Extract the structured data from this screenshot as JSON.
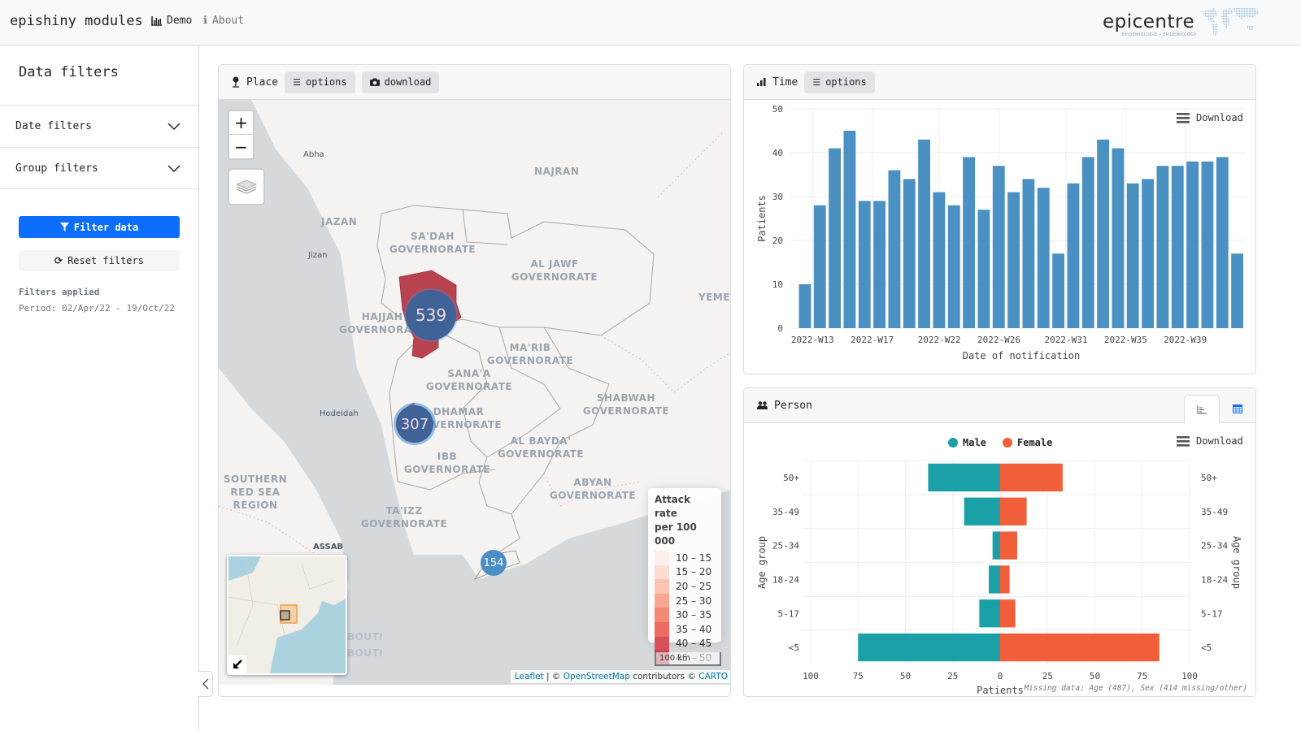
{
  "navbar": {
    "brand": "epishiny modules",
    "demo_label": "Demo",
    "about_label": "About",
    "logo_text": "epicentre",
    "logo_subtitle": "ÉPIDÉMIOLOGIE • EPIDEMIOLOGY"
  },
  "sidebar": {
    "title": "Data filters",
    "accordions": [
      {
        "label": "Date filters"
      },
      {
        "label": "Group filters"
      }
    ],
    "filter_button": "Filter data",
    "reset_button": "Reset filters",
    "filters_applied_label": "Filters applied",
    "period_text": "Period: 02/Apr/22 - 19/Oct/22"
  },
  "place": {
    "title": "Place",
    "options_label": "options",
    "download_label": "download",
    "zoom_in": "+",
    "zoom_out": "−",
    "clusters": [
      {
        "value": "539"
      },
      {
        "value": "307"
      },
      {
        "value": "154"
      }
    ],
    "regions": [
      "NAJRAN",
      "JAZAN",
      "SA'DAH GOVERNORATE",
      "AL JAWF GOVERNORATE",
      "HAJJAH GOVERNORATE",
      "MA'RIB GOVERNORATE",
      "SANA'A GOVERNORATE",
      "DHAMAR GOVERNORATE",
      "SHABWAH GOVERNORATE",
      "AL BAYDA' GOVERNORATE",
      "IBB GOVERNORATE",
      "ABYAN GOVERNORATE",
      "TA'IZZ GOVERNORATE",
      "SOUTHERN RED SEA REGION",
      "YEME"
    ],
    "cities": [
      "Abha",
      "Jizan",
      "Hodeidah",
      "ASSAB",
      "BOUTI",
      "BOUTI"
    ],
    "legend": {
      "title_line1": "Attack rate",
      "title_line2": "per 100 000",
      "bins": [
        {
          "label": "10 – 15",
          "color": "#fdf0ec"
        },
        {
          "label": "15 – 20",
          "color": "#fcddd2"
        },
        {
          "label": "20 – 25",
          "color": "#fbc4b1"
        },
        {
          "label": "25 – 30",
          "color": "#f9a791"
        },
        {
          "label": "30 – 35",
          "color": "#f58a74"
        },
        {
          "label": "35 – 40",
          "color": "#ec6a5f"
        },
        {
          "label": "40 – 45",
          "color": "#d84f58"
        },
        {
          "label": "45 – 50",
          "color": "#b8434f"
        }
      ]
    },
    "scale_label": "100 km",
    "attribution": {
      "leaflet": "Leaflet",
      "sep1": " | © ",
      "osm": "OpenStreetMap",
      "contrib": " contributors © ",
      "carto": "CARTO"
    }
  },
  "time": {
    "title": "Time",
    "options_label": "options",
    "download_label": "Download"
  },
  "person": {
    "title": "Person",
    "download_label": "Download",
    "missing_text": "Missing data: Age (487), Sex (414 missing/other)"
  },
  "chart_data": [
    {
      "type": "bar",
      "title": "",
      "xlabel": "Date of notification",
      "ylabel": "Patients",
      "ylim": [
        0,
        50
      ],
      "yticks": [
        0,
        10,
        20,
        30,
        40,
        50
      ],
      "xtick_labels": [
        "2022-W13",
        "2022-W17",
        "2022-W22",
        "2022-W26",
        "2022-W31",
        "2022-W35",
        "2022-W39"
      ],
      "xtick_indices": [
        0.5,
        4.5,
        9,
        13,
        17.5,
        21.5,
        25.5
      ],
      "color": "#4a90c2",
      "categories": [
        "2022-W13a",
        "2022-W13",
        "2022-W14",
        "2022-W15",
        "2022-W16",
        "2022-W17",
        "2022-W18",
        "2022-W19",
        "2022-W20",
        "2022-W21",
        "2022-W22",
        "2022-W23",
        "2022-W24",
        "2022-W25",
        "2022-W26",
        "2022-W27",
        "2022-W28",
        "2022-W29",
        "2022-W30",
        "2022-W31",
        "2022-W32",
        "2022-W33",
        "2022-W34",
        "2022-W35",
        "2022-W36",
        "2022-W37",
        "2022-W38",
        "2022-W39",
        "2022-W40",
        "2022-W41"
      ],
      "values": [
        10,
        28,
        41,
        45,
        29,
        29,
        36,
        34,
        43,
        31,
        28,
        39,
        27,
        37,
        31,
        34,
        32,
        17,
        33,
        39,
        43,
        41,
        33,
        34,
        37,
        37,
        38,
        38,
        39,
        17
      ],
      "grid": true
    },
    {
      "type": "bar",
      "subtype": "population-pyramid",
      "xlabel": "Patients",
      "ylabel": "Age group",
      "xlim": [
        -100,
        100
      ],
      "xticks": [
        100,
        75,
        50,
        25,
        0,
        25,
        50,
        75,
        100
      ],
      "categories": [
        "50+",
        "35-49",
        "25-34",
        "18-24",
        "5-17",
        "<5"
      ],
      "legend": "top-center",
      "series": [
        {
          "name": "Male",
          "color": "#1ba0a8",
          "values": [
            38,
            19,
            4,
            6,
            11,
            75
          ]
        },
        {
          "name": "Female",
          "color": "#f15f3a",
          "values": [
            33,
            14,
            9,
            5,
            8,
            84
          ]
        }
      ],
      "grid": true
    }
  ]
}
